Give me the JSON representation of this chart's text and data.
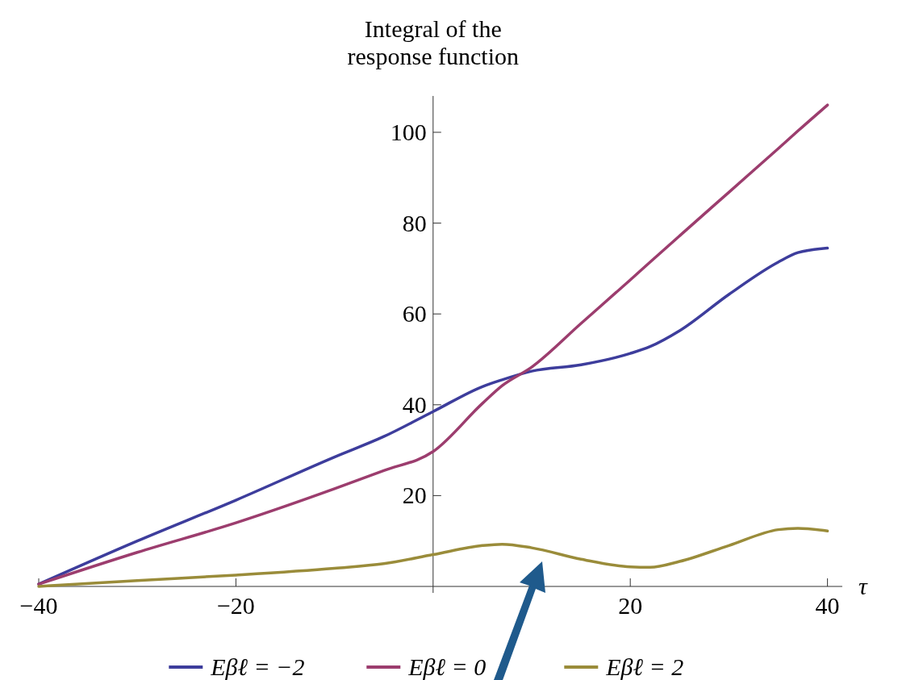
{
  "chart_data": {
    "type": "line",
    "ylabel": "Integral of the\nresponse function",
    "xlabel": "τ",
    "xlim": [
      -40,
      41.5
    ],
    "ylim": [
      0,
      108
    ],
    "xticks": [
      -40,
      -20,
      20,
      40
    ],
    "yticks": [
      20,
      40,
      60,
      80,
      100
    ],
    "grid": false,
    "legend": "bottom",
    "marker": "none",
    "line_style": "solid",
    "x": [
      -40,
      -30,
      -20,
      -10,
      -5,
      0,
      5,
      7,
      10,
      15,
      20,
      22,
      25,
      30,
      35,
      37,
      40
    ],
    "series": [
      {
        "name": "Eβℓ = −2",
        "color": "#3d3d9c",
        "values": [
          0.5,
          10,
          19,
          28.5,
          33,
          38.5,
          44,
          45.5,
          47.4,
          48.8,
          51.3,
          52.8,
          56.3,
          64.3,
          71.4,
          73.5,
          74.5
        ]
      },
      {
        "name": "Eβℓ = 0",
        "color": "#9c3d6e",
        "values": [
          0.5,
          7.5,
          14,
          21.5,
          25.5,
          29.7,
          40.3,
          44.2,
          48.3,
          57.9,
          67.5,
          71.4,
          77.2,
          86.8,
          96.4,
          100.3,
          106
        ]
      },
      {
        "name": "Eβℓ = 2",
        "color": "#9a8c3a",
        "values": [
          0,
          1.3,
          2.5,
          4,
          5,
          7,
          9,
          9.3,
          8.5,
          6,
          4.3,
          4.2,
          5.5,
          9,
          12.5,
          12.8,
          12.2
        ]
      }
    ]
  }
}
